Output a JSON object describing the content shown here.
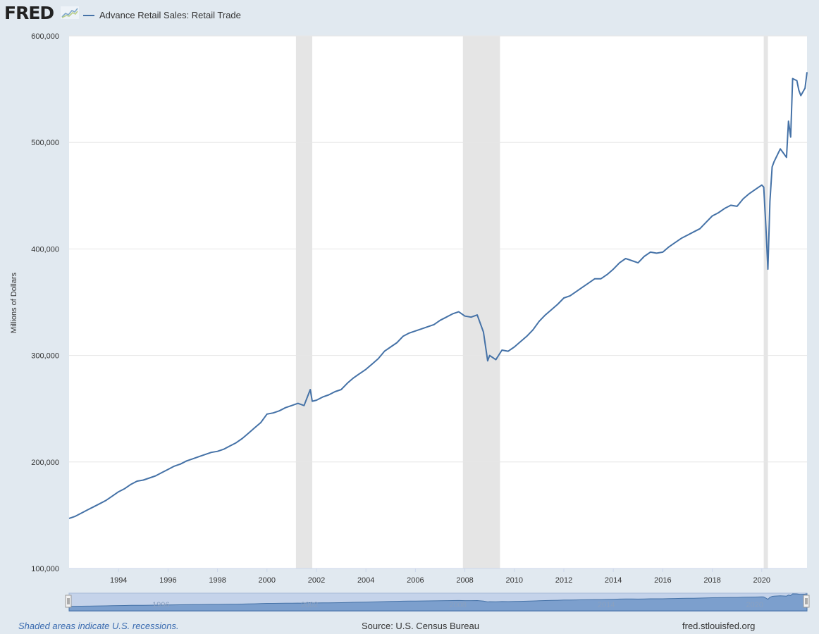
{
  "header": {
    "logo_text": "FRED",
    "legend_label": "Advance Retail Sales: Retail Trade"
  },
  "footer": {
    "recession_note": "Shaded areas indicate U.S. recessions.",
    "source": "Source: U.S. Census Bureau",
    "site": "fred.stlouisfed.org"
  },
  "colors": {
    "series": "#4572a7",
    "recession": "#e5e5e5",
    "background": "#e1e9f0"
  },
  "chart_data": {
    "type": "line",
    "title": "",
    "xlabel": "",
    "ylabel": "Millions of Dollars",
    "xlim": [
      1992.0,
      2021.83
    ],
    "ylim": [
      100000,
      600000
    ],
    "yticks": [
      100000,
      200000,
      300000,
      400000,
      500000,
      600000
    ],
    "ytick_labels": [
      "100,000",
      "200,000",
      "300,000",
      "400,000",
      "500,000",
      "600,000"
    ],
    "xticks": [
      1994,
      1996,
      1998,
      2000,
      2002,
      2004,
      2006,
      2008,
      2010,
      2012,
      2014,
      2016,
      2018,
      2020
    ],
    "xtick_labels": [
      "1994",
      "1996",
      "1998",
      "2000",
      "2002",
      "2004",
      "2006",
      "2008",
      "2010",
      "2012",
      "2014",
      "2016",
      "2018",
      "2020"
    ],
    "grid": "horizontal",
    "legend": "top-left",
    "recessions": [
      [
        2001.17,
        2001.83
      ],
      [
        2007.92,
        2009.42
      ],
      [
        2020.08,
        2020.25
      ]
    ],
    "series": [
      {
        "name": "Advance Retail Sales: Retail Trade",
        "x": [
          1992.0,
          1992.25,
          1992.5,
          1992.75,
          1993.0,
          1993.25,
          1993.5,
          1993.75,
          1994.0,
          1994.25,
          1994.5,
          1994.75,
          1995.0,
          1995.25,
          1995.5,
          1995.75,
          1996.0,
          1996.25,
          1996.5,
          1996.75,
          1997.0,
          1997.25,
          1997.5,
          1997.75,
          1998.0,
          1998.25,
          1998.5,
          1998.75,
          1999.0,
          1999.25,
          1999.5,
          1999.75,
          2000.0,
          2000.25,
          2000.5,
          2000.75,
          2001.0,
          2001.25,
          2001.5,
          2001.75,
          2001.83,
          2002.0,
          2002.25,
          2002.5,
          2002.75,
          2003.0,
          2003.25,
          2003.5,
          2003.75,
          2004.0,
          2004.25,
          2004.5,
          2004.75,
          2005.0,
          2005.25,
          2005.5,
          2005.75,
          2006.0,
          2006.25,
          2006.5,
          2006.75,
          2007.0,
          2007.25,
          2007.5,
          2007.75,
          2008.0,
          2008.25,
          2008.5,
          2008.75,
          2008.92,
          2009.0,
          2009.25,
          2009.5,
          2009.75,
          2010.0,
          2010.25,
          2010.5,
          2010.75,
          2011.0,
          2011.25,
          2011.5,
          2011.75,
          2012.0,
          2012.25,
          2012.5,
          2012.75,
          2013.0,
          2013.25,
          2013.5,
          2013.75,
          2014.0,
          2014.25,
          2014.5,
          2014.75,
          2015.0,
          2015.25,
          2015.5,
          2015.75,
          2016.0,
          2016.25,
          2016.5,
          2016.75,
          2017.0,
          2017.25,
          2017.5,
          2017.75,
          2018.0,
          2018.25,
          2018.5,
          2018.75,
          2019.0,
          2019.25,
          2019.5,
          2019.75,
          2020.0,
          2020.08,
          2020.17,
          2020.25,
          2020.33,
          2020.42,
          2020.5,
          2020.75,
          2021.0,
          2021.08,
          2021.17,
          2021.25,
          2021.42,
          2021.5,
          2021.58,
          2021.75,
          2021.83
        ],
        "values": [
          147000,
          149000,
          152000,
          155000,
          158000,
          161000,
          164000,
          168000,
          172000,
          175000,
          179000,
          182000,
          183000,
          185000,
          187000,
          190000,
          193000,
          196000,
          198000,
          201000,
          203000,
          205000,
          207000,
          209000,
          210000,
          212000,
          215000,
          218000,
          222000,
          227000,
          232000,
          237000,
          245000,
          246000,
          248000,
          251000,
          253000,
          255000,
          253000,
          268000,
          257000,
          258000,
          261000,
          263000,
          266000,
          268000,
          274000,
          279000,
          283000,
          287000,
          292000,
          297000,
          304000,
          308000,
          312000,
          318000,
          321000,
          323000,
          325000,
          327000,
          329000,
          333000,
          336000,
          339000,
          341000,
          337000,
          336000,
          338000,
          322000,
          295000,
          300000,
          296000,
          305000,
          304000,
          308000,
          313000,
          318000,
          324000,
          332000,
          338000,
          343000,
          348000,
          354000,
          356000,
          360000,
          364000,
          368000,
          372000,
          372000,
          376000,
          381000,
          387000,
          391000,
          389000,
          387000,
          393000,
          397000,
          396000,
          397000,
          402000,
          406000,
          410000,
          413000,
          416000,
          419000,
          425000,
          431000,
          434000,
          438000,
          441000,
          440000,
          447000,
          452000,
          456000,
          460000,
          458000,
          420000,
          381000,
          445000,
          477000,
          482000,
          494000,
          486000,
          520000,
          505000,
          560000,
          558000,
          549000,
          544000,
          551000,
          566000
        ]
      }
    ]
  }
}
